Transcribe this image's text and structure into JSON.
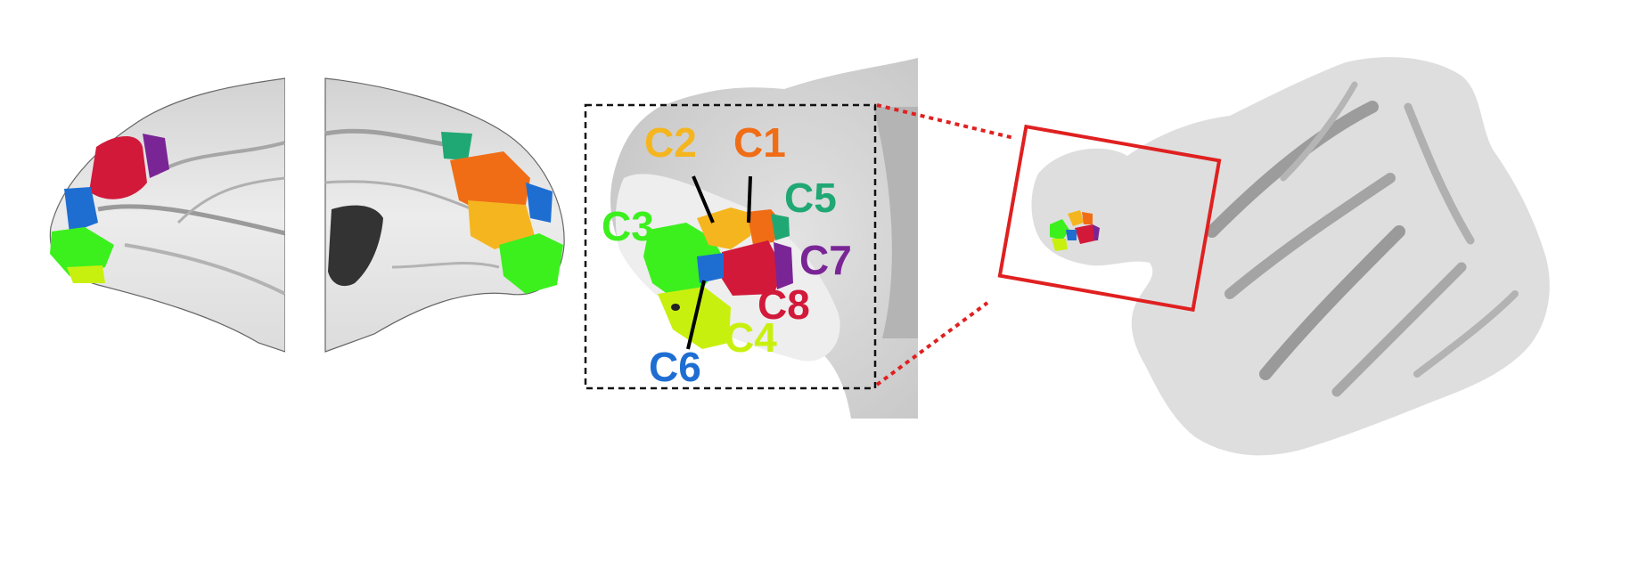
{
  "figure": {
    "clusters": [
      {
        "id": "C1",
        "label": "C1",
        "color": "#f06d16"
      },
      {
        "id": "C2",
        "label": "C2",
        "color": "#f5b51e"
      },
      {
        "id": "C3",
        "label": "C3",
        "color": "#3cf01e"
      },
      {
        "id": "C4",
        "label": "C4",
        "color": "#c8f00f"
      },
      {
        "id": "C5",
        "label": "C5",
        "color": "#1fa874"
      },
      {
        "id": "C6",
        "label": "C6",
        "color": "#1e6ed2"
      },
      {
        "id": "C7",
        "label": "C7",
        "color": "#7a2596"
      },
      {
        "id": "C8",
        "label": "C8",
        "color": "#d2193a"
      }
    ],
    "colors": {
      "surface": "#e6e6e6",
      "sulcus": "#a9a9a9",
      "inset_box": "#111111",
      "callout": "#e02020"
    }
  }
}
